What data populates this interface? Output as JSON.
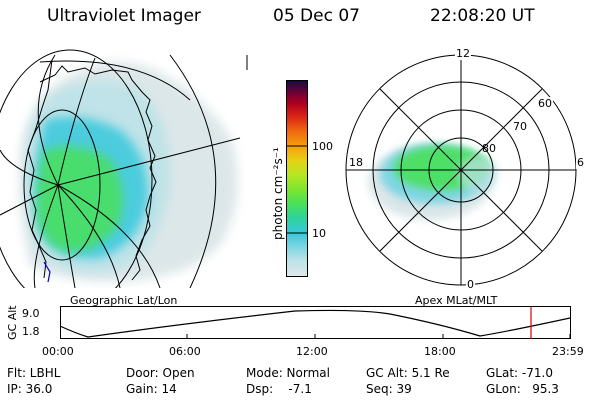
{
  "header": {
    "instrument": "Ultraviolet Imager",
    "date": "05 Dec 07",
    "time": "22:08:20 UT"
  },
  "geo_panel": {
    "caption": "Geographic Lat/Lon"
  },
  "colorbar": {
    "unit_label": "photon cm⁻²s⁻¹",
    "tick_labels": [
      "100",
      "10"
    ],
    "tick_values": [
      100,
      10
    ],
    "colors": [
      "#dfe8ea",
      "#bfe3e8",
      "#7fd6e2",
      "#37c8dc",
      "#2ed39a",
      "#48e05a",
      "#7ae52e",
      "#b9e625",
      "#e6d214",
      "#f3a30e",
      "#ef6a10",
      "#dc2a14",
      "#b1001c",
      "#6c0038",
      "#101040"
    ]
  },
  "polar_panel": {
    "caption": "Apex MLat/MLT",
    "mlt_labels": [
      "12",
      "18",
      "6",
      "0"
    ],
    "lat_labels": [
      "60",
      "70",
      "80"
    ]
  },
  "timeline": {
    "ylabel": "GC Alt",
    "y_ticks": [
      "9.0",
      "1.8"
    ],
    "x_ticks": [
      "00:00",
      "06:00",
      "12:00",
      "18:00",
      "23:59"
    ],
    "marker_time": "22:08",
    "marker_color": "#e00000"
  },
  "info": {
    "flt": "Flt: LBHL",
    "ip": "IP: 36.0",
    "door": "Door: Open",
    "gain": "Gain: 14",
    "mode": "Mode: Normal",
    "dsp": "Dsp:    -7.1",
    "gcalt": "GC Alt: 5.1 Re",
    "seq": "Seq: 39",
    "glat": "GLat: -71.0",
    "glon": "GLon:   95.3"
  }
}
